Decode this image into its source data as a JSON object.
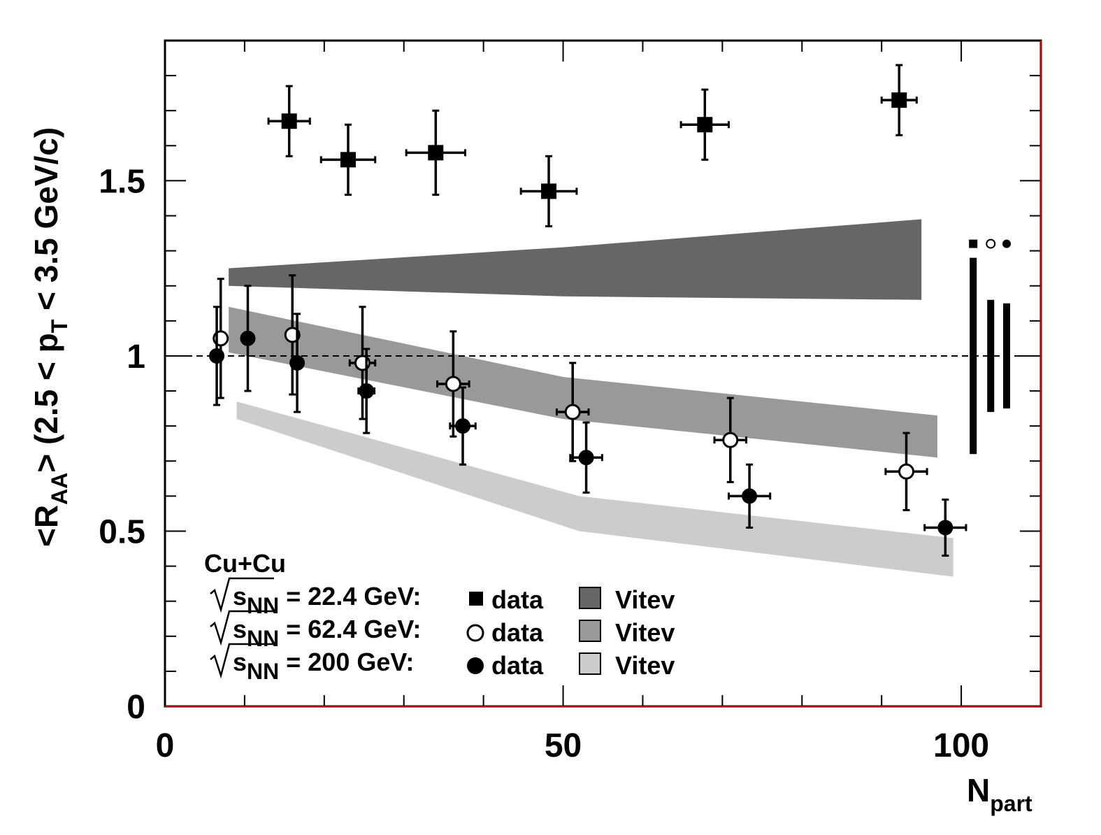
{
  "chart_data": {
    "type": "scatter",
    "xlabel": "N",
    "xlabel_sub": "part",
    "ylabel_parts": [
      "<R",
      "AA",
      "> (2.5 < p",
      "T",
      " < 3.5 GeV/c)"
    ],
    "xlim": [
      0,
      110
    ],
    "ylim": [
      0,
      1.9
    ],
    "x_ticks": [
      0,
      50,
      100
    ],
    "y_ticks": [
      0,
      0.5,
      1,
      1.5
    ],
    "x_tick_labels": [
      "0",
      "50",
      "100"
    ],
    "y_tick_labels": [
      "0",
      "0.5",
      "1",
      "1.5"
    ],
    "reference_line": 1,
    "series": [
      {
        "label": "data",
        "marker": "filled-square",
        "points": [
          {
            "x": 15.6,
            "y": 1.67,
            "xerr": 2.6,
            "yerr": 0.1
          },
          {
            "x": 23.0,
            "y": 1.56,
            "xerr": 3.4,
            "yerr": 0.1
          },
          {
            "x": 34.0,
            "y": 1.58,
            "xerr": 3.7,
            "yerr": 0.12
          },
          {
            "x": 48.2,
            "y": 1.47,
            "xerr": 3.5,
            "yerr": 0.1
          },
          {
            "x": 67.8,
            "y": 1.66,
            "xerr": 3.0,
            "yerr": 0.1
          },
          {
            "x": 92.2,
            "y": 1.73,
            "xerr": 2.2,
            "yerr": 0.1
          }
        ]
      },
      {
        "label": "data",
        "marker": "open-circle",
        "points": [
          {
            "x": 7.0,
            "y": 1.05,
            "xerr": 0.6,
            "yerr": 0.17
          },
          {
            "x": 16.0,
            "y": 1.06,
            "xerr": 0.6,
            "yerr": 0.17
          },
          {
            "x": 24.8,
            "y": 0.98,
            "xerr": 1.6,
            "yerr": 0.16
          },
          {
            "x": 36.2,
            "y": 0.92,
            "xerr": 2.0,
            "yerr": 0.15
          },
          {
            "x": 51.2,
            "y": 0.84,
            "xerr": 2.0,
            "yerr": 0.14
          },
          {
            "x": 71.0,
            "y": 0.76,
            "xerr": 2.0,
            "yerr": 0.12
          },
          {
            "x": 93.1,
            "y": 0.67,
            "xerr": 2.6,
            "yerr": 0.11
          }
        ]
      },
      {
        "label": "data",
        "marker": "filled-circle",
        "points": [
          {
            "x": 6.5,
            "y": 1.0,
            "xerr": 0.4,
            "yerr": 0.14
          },
          {
            "x": 10.4,
            "y": 1.05,
            "xerr": 0.4,
            "yerr": 0.15
          },
          {
            "x": 16.6,
            "y": 0.98,
            "xerr": 0.4,
            "yerr": 0.14
          },
          {
            "x": 25.3,
            "y": 0.9,
            "xerr": 1.0,
            "yerr": 0.12
          },
          {
            "x": 37.4,
            "y": 0.8,
            "xerr": 1.6,
            "yerr": 0.11
          },
          {
            "x": 52.9,
            "y": 0.71,
            "xerr": 2.0,
            "yerr": 0.1
          },
          {
            "x": 73.4,
            "y": 0.6,
            "xerr": 2.6,
            "yerr": 0.09
          },
          {
            "x": 98.0,
            "y": 0.51,
            "xerr": 2.6,
            "yerr": 0.08
          }
        ]
      }
    ],
    "bands": [
      {
        "label": "Vitev",
        "color": "#666666",
        "upper": [
          [
            8,
            1.25
          ],
          [
            50,
            1.31
          ],
          [
            95,
            1.39
          ]
        ],
        "lower": [
          [
            8,
            1.2
          ],
          [
            50,
            1.17
          ],
          [
            95,
            1.16
          ]
        ]
      },
      {
        "label": "Vitev",
        "color": "#999999",
        "upper": [
          [
            8,
            1.14
          ],
          [
            50,
            0.94
          ],
          [
            97,
            0.83
          ]
        ],
        "lower": [
          [
            8,
            1.01
          ],
          [
            50,
            0.82
          ],
          [
            97,
            0.71
          ]
        ]
      },
      {
        "label": "Vitev",
        "color": "#cccccc",
        "upper": [
          [
            9,
            0.87
          ],
          [
            52,
            0.6
          ],
          [
            99,
            0.48
          ]
        ],
        "lower": [
          [
            9,
            0.82
          ],
          [
            52,
            0.5
          ],
          [
            99,
            0.37
          ]
        ]
      }
    ],
    "systematics": [
      {
        "marker": "filled-square",
        "x": 101.5,
        "low": 0.72,
        "high": 1.28
      },
      {
        "marker": "open-circle",
        "x": 103.7,
        "low": 0.84,
        "high": 1.16
      },
      {
        "marker": "filled-circle",
        "x": 105.7,
        "low": 0.85,
        "high": 1.15
      }
    ],
    "legend": {
      "title": "Cu+Cu",
      "position": "bottom-left",
      "rows": [
        {
          "sqrt_label": "s",
          "sqrt_sub": "NN",
          "energy_text": " = 22.4 GeV:",
          "marker": "filled-square",
          "data_label": "data",
          "band_label": "Vitev",
          "band_color": "#666666"
        },
        {
          "sqrt_label": "s",
          "sqrt_sub": "NN",
          "energy_text": " = 62.4 GeV:",
          "marker": "open-circle",
          "data_label": "data",
          "band_label": "Vitev",
          "band_color": "#999999"
        },
        {
          "sqrt_label": "s",
          "sqrt_sub": "NN",
          "energy_text": " = 200 GeV:",
          "marker": "filled-circle",
          "data_label": "data",
          "band_label": "Vitev",
          "band_color": "#cccccc"
        }
      ]
    }
  }
}
